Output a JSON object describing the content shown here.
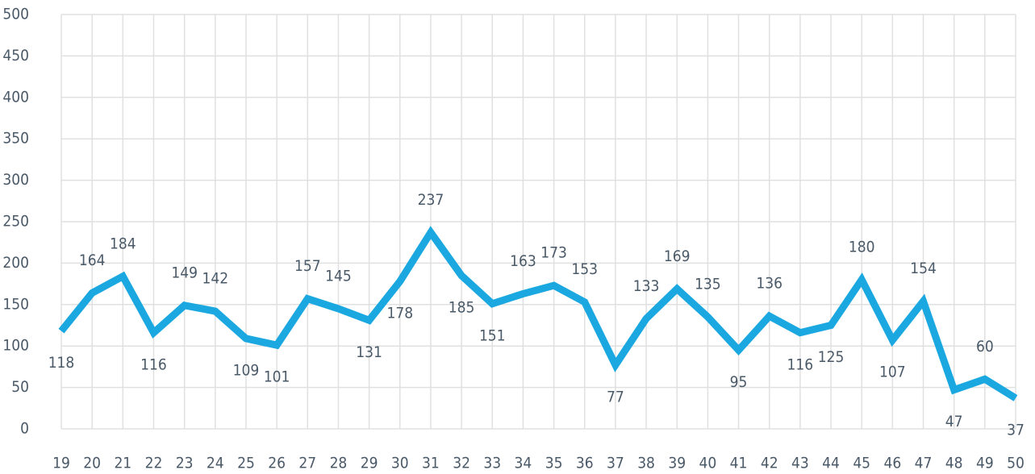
{
  "chart_data": {
    "type": "line",
    "categories": [
      19,
      20,
      21,
      22,
      23,
      24,
      25,
      26,
      27,
      28,
      29,
      30,
      31,
      32,
      33,
      34,
      35,
      36,
      37,
      38,
      39,
      40,
      41,
      42,
      43,
      44,
      45,
      46,
      47,
      48,
      49,
      50
    ],
    "series": [
      {
        "name": null,
        "color": "#1ba8e0",
        "values": [
          118,
          164,
          184,
          116,
          149,
          142,
          109,
          101,
          157,
          145,
          131,
          178,
          237,
          185,
          151,
          163,
          173,
          153,
          77,
          133,
          169,
          135,
          95,
          136,
          116,
          125,
          180,
          107,
          154,
          47,
          60,
          37
        ]
      }
    ],
    "ylim": [
      0,
      500
    ],
    "yticks": [
      0,
      50,
      100,
      150,
      200,
      250,
      300,
      350,
      400,
      450,
      500
    ],
    "grid": true
  }
}
